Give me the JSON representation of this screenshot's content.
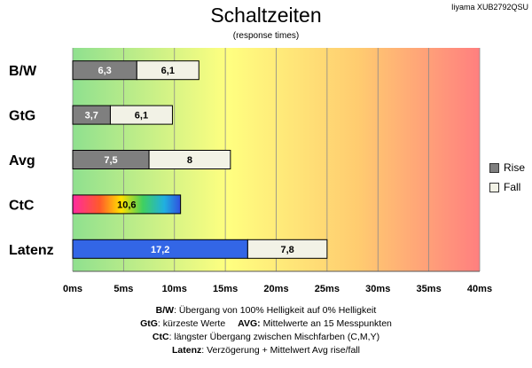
{
  "header": {
    "title": "Schaltzeiten",
    "subtitle": "(response times)",
    "model": "Iiyama XUB2792QSU"
  },
  "legend": {
    "rise_label": "Rise",
    "fall_label": "Fall",
    "rise_color": "#7f7f7f",
    "fall_color": "#f2f2e6"
  },
  "notes": {
    "line1_key": "B/W",
    "line1_text": ":  Übergang von 100% Helligkeit auf 0% Helligkeit",
    "line2_key_a": "GtG",
    "line2_text_a": ": kürzeste  Werte",
    "line2_key_b": "AVG:",
    "line2_text_b": " Mittelwerte  an 15 Messpunkten",
    "line3_key": "CtC",
    "line3_text": ": längster Übergang  zwischen Mischfarben  (C,M,Y)",
    "line4_key": "Latenz",
    "line4_text": ": Verzögerung  + Mittelwert Avg rise/fall"
  },
  "chart_data": {
    "type": "bar",
    "orientation": "horizontal",
    "stacked": true,
    "categories": [
      "B/W",
      "GtG",
      "Avg",
      "CtC",
      "Latenz"
    ],
    "series": [
      {
        "name": "Rise",
        "values": [
          6.3,
          3.7,
          7.5,
          10.6,
          17.2
        ]
      },
      {
        "name": "Fall",
        "values": [
          6.1,
          6.1,
          8,
          null,
          7.8
        ]
      }
    ],
    "data_labels": {
      "Rise": [
        "6,3",
        "3,7",
        "7,5",
        "10,6",
        "17,2"
      ],
      "Fall": [
        "6,1",
        "6,1",
        "8",
        "",
        "7,8"
      ]
    },
    "xlim": [
      0,
      40
    ],
    "x_ticks": [
      0,
      5,
      10,
      15,
      20,
      25,
      30,
      35,
      40
    ],
    "x_tick_labels": [
      "0ms",
      "5ms",
      "10ms",
      "15ms",
      "20ms",
      "25ms",
      "30ms",
      "35ms",
      "40ms"
    ],
    "grid": true,
    "legend_position": "right",
    "background_gradient": [
      "#8fe08f",
      "#ffff80",
      "#ff7f7f"
    ],
    "special_fills": {
      "CtC": "rainbow",
      "Latenz": "#3366e6"
    }
  }
}
